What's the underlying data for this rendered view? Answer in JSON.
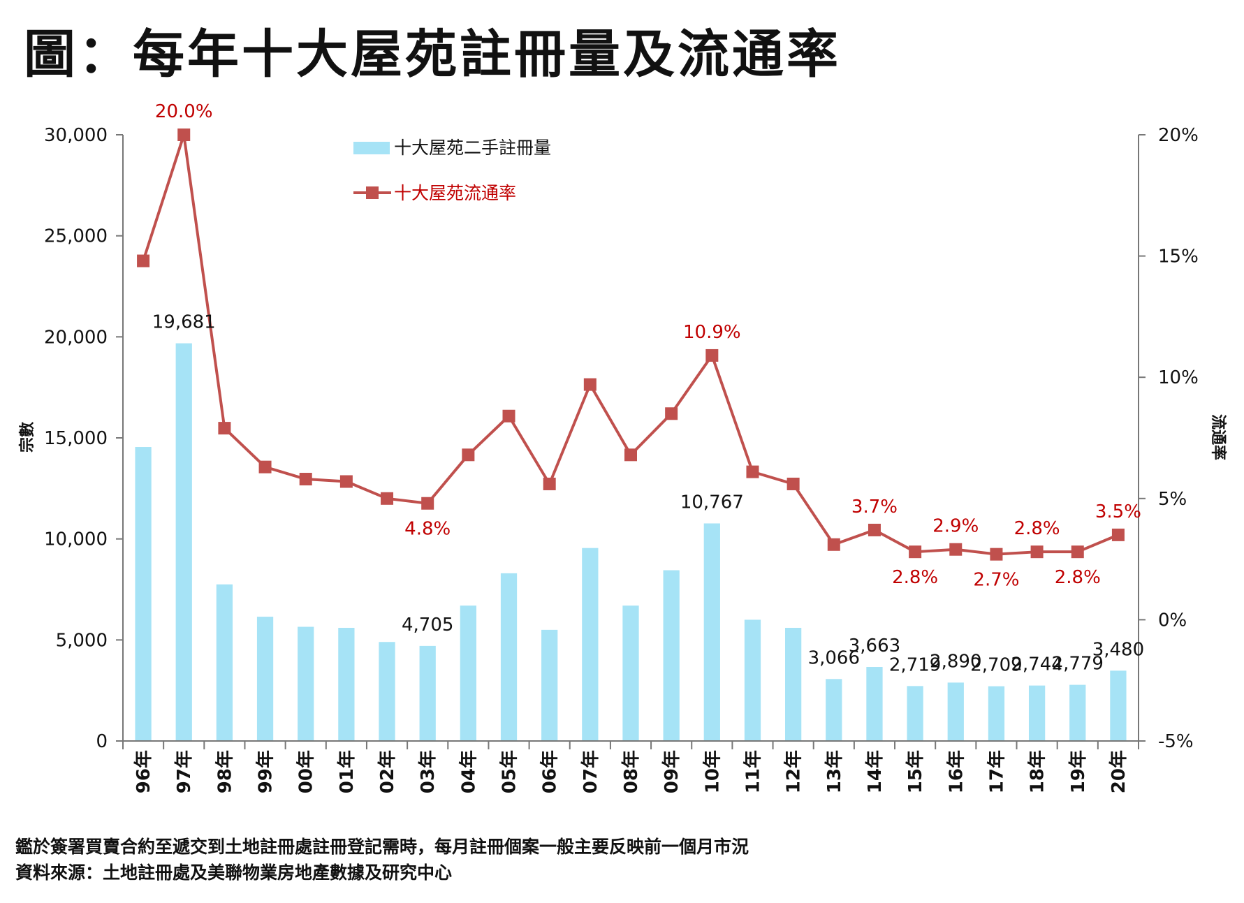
{
  "page_title": "圖：每年十大屋苑註冊量及流通率",
  "colors": {
    "bar": "#a6e3f6",
    "line": "#c0504d",
    "line_label": "#c00000",
    "bar_label": "#111111",
    "axis": "#777777"
  },
  "chart_data": {
    "type": "bar+line",
    "categories": [
      "96年",
      "97年",
      "98年",
      "99年",
      "00年",
      "01年",
      "02年",
      "03年",
      "04年",
      "05年",
      "06年",
      "07年",
      "08年",
      "09年",
      "10年",
      "11年",
      "12年",
      "13年",
      "14年",
      "15年",
      "16年",
      "17年",
      "18年",
      "19年",
      "20年"
    ],
    "series": [
      {
        "name": "十大屋苑二手註冊量",
        "type": "bar",
        "axis": "left",
        "values": [
          14550,
          19681,
          7750,
          6150,
          5650,
          5600,
          4900,
          4705,
          6700,
          8300,
          5500,
          9550,
          6700,
          8450,
          10767,
          6000,
          5600,
          3066,
          3663,
          2719,
          2890,
          2709,
          2744,
          2779,
          3480
        ],
        "labels": [
          {
            "index": 1,
            "text": "19,681"
          },
          {
            "index": 7,
            "text": "4,705"
          },
          {
            "index": 14,
            "text": "10,767"
          },
          {
            "index": 17,
            "text": "3,066"
          },
          {
            "index": 18,
            "text": "3,663"
          },
          {
            "index": 19,
            "text": "2,719"
          },
          {
            "index": 20,
            "text": "2,890"
          },
          {
            "index": 21,
            "text": "2,709"
          },
          {
            "index": 22,
            "text": "2,744"
          },
          {
            "index": 23,
            "text": "2,779"
          },
          {
            "index": 24,
            "text": "3,480"
          }
        ]
      },
      {
        "name": "十大屋苑流通率",
        "type": "line",
        "axis": "right",
        "marker": "square",
        "values": [
          14.8,
          20.0,
          7.9,
          6.3,
          5.8,
          5.7,
          5.0,
          4.8,
          6.8,
          8.4,
          5.6,
          9.7,
          6.8,
          8.5,
          10.9,
          6.1,
          5.6,
          3.1,
          3.7,
          2.8,
          2.9,
          2.7,
          2.8,
          2.8,
          3.5
        ],
        "labels": [
          {
            "index": 1,
            "text": "20.0%",
            "position": "above"
          },
          {
            "index": 7,
            "text": "4.8%",
            "position": "below"
          },
          {
            "index": 14,
            "text": "10.9%",
            "position": "above"
          },
          {
            "index": 18,
            "text": "3.7%",
            "position": "above"
          },
          {
            "index": 19,
            "text": "2.8%",
            "position": "below"
          },
          {
            "index": 20,
            "text": "2.9%",
            "position": "above"
          },
          {
            "index": 21,
            "text": "2.7%",
            "position": "below"
          },
          {
            "index": 22,
            "text": "2.8%",
            "position": "above"
          },
          {
            "index": 23,
            "text": "2.8%",
            "position": "below"
          },
          {
            "index": 24,
            "text": "3.5%",
            "position": "above"
          }
        ]
      }
    ],
    "y_left": {
      "label": "宗數",
      "range": [
        0,
        30000
      ],
      "ticks": [
        0,
        5000,
        10000,
        15000,
        20000,
        25000,
        30000
      ],
      "tick_labels": [
        "0",
        "5,000",
        "10,000",
        "15,000",
        "20,000",
        "25,000",
        "30,000"
      ]
    },
    "y_right": {
      "label": "流通率",
      "range": [
        -5,
        20
      ],
      "ticks": [
        -5,
        0,
        5,
        10,
        15,
        20
      ],
      "tick_labels": [
        "-5%",
        "0%",
        "5%",
        "10%",
        "15%",
        "20%"
      ]
    },
    "legend": [
      "十大屋苑二手註冊量",
      "十大屋苑流通率"
    ],
    "grid": false
  },
  "notes": [
    "鑑於簽署買賣合約至遞交到土地註冊處註冊登記需時，每月註冊個案一般主要反映前一個月市況",
    "資料來源：土地註冊處及美聯物業房地產數據及研究中心"
  ]
}
